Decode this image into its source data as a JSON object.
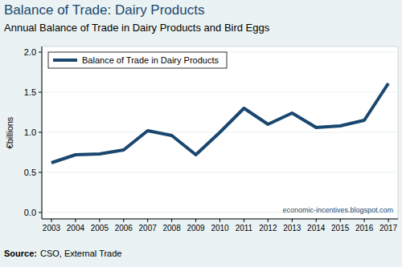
{
  "chart_data": {
    "type": "line",
    "title": "Balance of Trade: Dairy Products",
    "subtitle": "Annual Balance of Trade in Dairy Products and Bird Eggs",
    "y_label": "€billions",
    "annotation": "economic-incentives.blogspot.com",
    "source_label": "Source:",
    "source": "CSO, External Trade",
    "x": [
      2003,
      2004,
      2005,
      2006,
      2007,
      2008,
      2009,
      2010,
      2011,
      2012,
      2013,
      2014,
      2015,
      2016,
      2017
    ],
    "series": [
      {
        "name": "Balance of Trade in Dairy Products",
        "color": "#1a476f",
        "values": [
          0.62,
          0.72,
          0.73,
          0.78,
          1.02,
          0.96,
          0.72,
          1.0,
          1.3,
          1.1,
          1.24,
          1.06,
          1.08,
          1.15,
          1.61
        ]
      }
    ],
    "xlim": [
      2002.6,
      2017.4
    ],
    "xticks": [
      2003,
      2004,
      2005,
      2006,
      2007,
      2008,
      2009,
      2010,
      2011,
      2012,
      2013,
      2014,
      2015,
      2016,
      2017
    ],
    "ylim": [
      -0.08,
      2.07
    ],
    "yticks": [
      {
        "value": 0,
        "label": "0.0"
      },
      {
        "value": 0.5,
        "label": "0.5"
      },
      {
        "value": 1,
        "label": "1.0"
      },
      {
        "value": 1.5,
        "label": "1.5"
      },
      {
        "value": 2,
        "label": "2.0"
      }
    ],
    "grid": true,
    "legend": "top-left"
  }
}
